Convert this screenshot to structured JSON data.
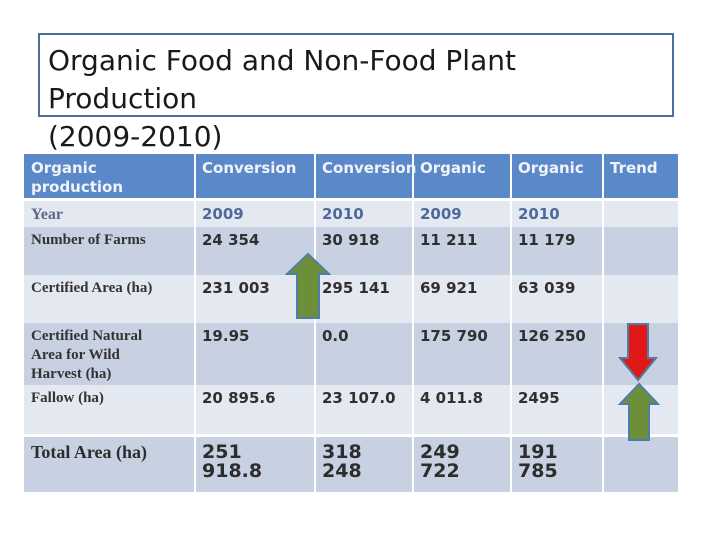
{
  "slide": {
    "title_line1": "Organic Food and Non-Food Plant Production",
    "title_line2": "(2009-2010)"
  },
  "table": {
    "headers": [
      "Organic production",
      "Conversion",
      "Conversion",
      "Organic",
      "Organic",
      "Trend"
    ],
    "year": {
      "label": "Year",
      "values": [
        "2009",
        "2010",
        "2009",
        "2010"
      ]
    },
    "farms": {
      "label": "Number of Farms",
      "values": [
        "24 354",
        "30 918",
        "11 211",
        "11 179"
      ]
    },
    "certified_area": {
      "label": "Certified Area (ha)",
      "values": [
        "231 003",
        "295 141",
        "69 921",
        "63 039"
      ]
    },
    "natural_area": {
      "label_lines": [
        "Certified Natural",
        "Area for Wild",
        "Harvest (ha)"
      ],
      "values": [
        "19.95",
        "0.0",
        "175 790",
        "126 250"
      ]
    },
    "fallow": {
      "label": "Fallow (ha)",
      "values": [
        "20 895.6",
        "23 107.0",
        "4 011.8",
        "2495"
      ]
    },
    "total": {
      "label": "Total  Area (ha)",
      "values": [
        "251 918.8",
        "318 248",
        "249 722",
        "191 785"
      ]
    }
  },
  "colors": {
    "header_bg": "#5b88c9",
    "row_light": "#e4e9f1",
    "row_dark": "#c7d1e2",
    "arrow_up": "#6e8f3a",
    "arrow_down": "#e01818",
    "title_border": "#4a6f9a"
  },
  "icons": [
    "arrow-up-icon",
    "arrow-down-icon",
    "arrow-up-icon"
  ]
}
